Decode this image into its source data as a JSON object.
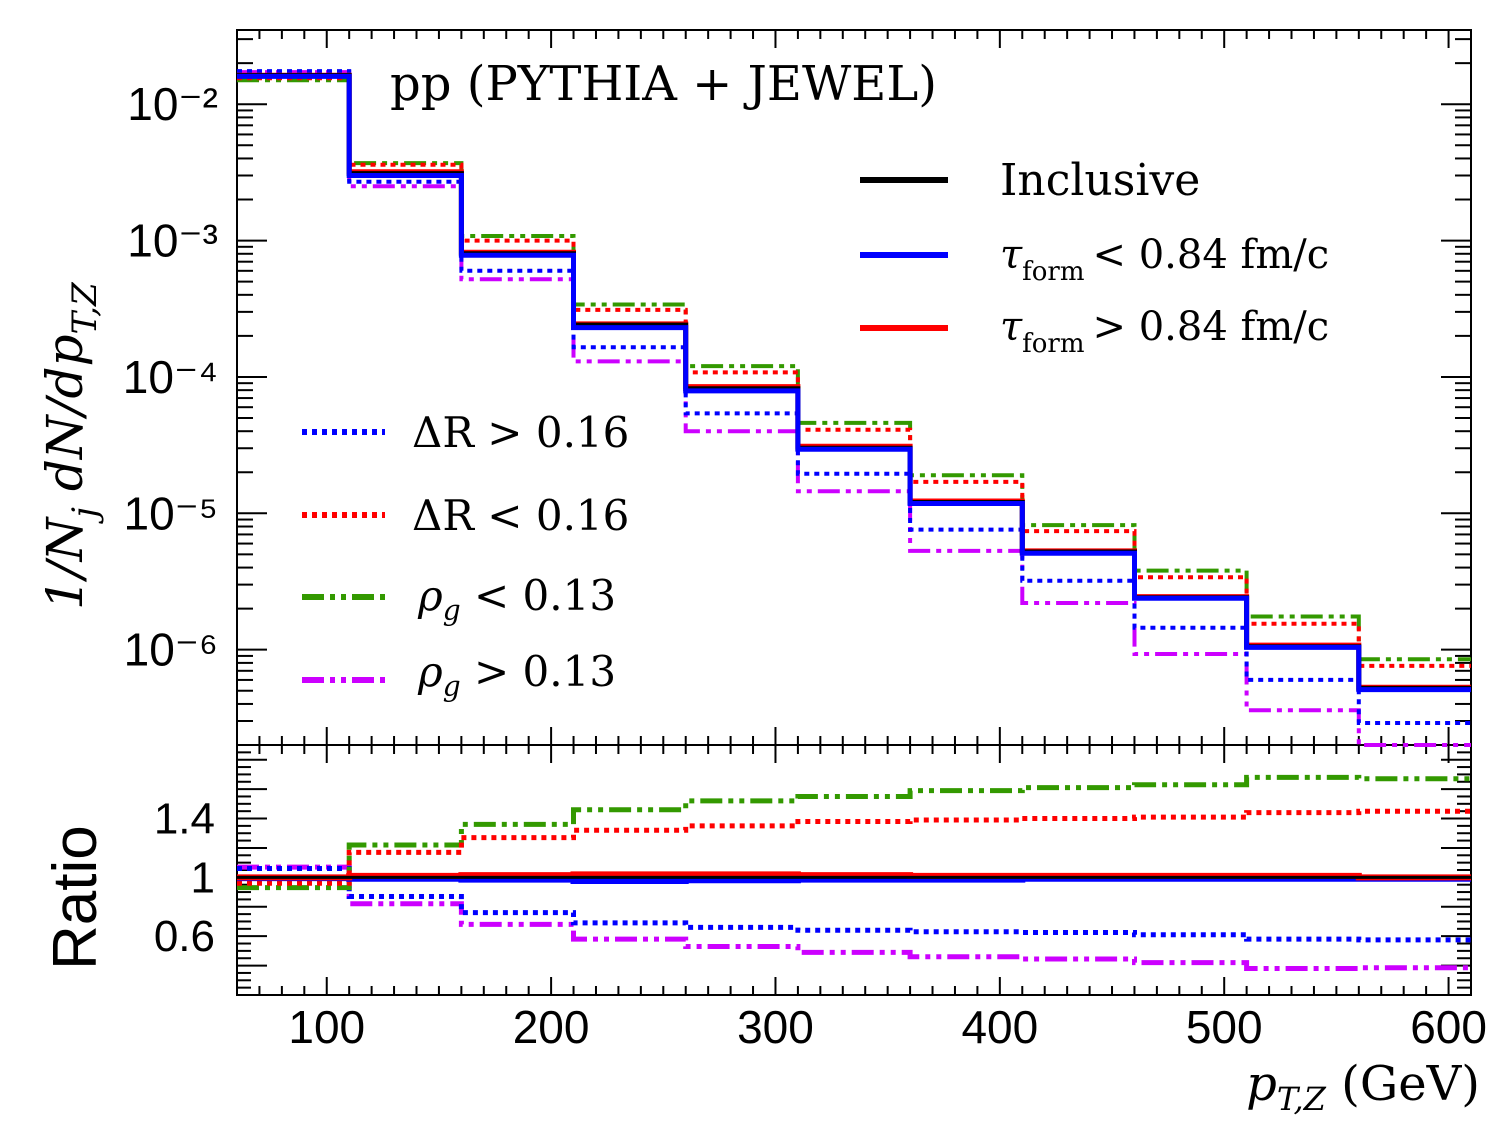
{
  "chart_data": {
    "type": "line",
    "title": "pp (PYTHIA + JEWEL)",
    "xlabel": "p_{T,Z} (GeV)",
    "x_bin_edges": [
      60,
      110,
      160,
      210,
      260,
      310,
      360,
      410,
      460,
      510,
      560,
      610
    ],
    "x_ticks": [
      "100",
      "200",
      "300",
      "400",
      "500",
      "600"
    ],
    "xlim": [
      60,
      610
    ],
    "top_panel": {
      "ylabel": "1/N_j dN/dp_{T,Z}",
      "yscale": "log",
      "ylim": [
        2e-07,
        0.035
      ],
      "y_ticks": [
        "10⁻²",
        "10⁻³",
        "10⁻⁴",
        "10⁻⁵",
        "10⁻⁶"
      ],
      "series": [
        {
          "name": "Inclusive",
          "style": "solid",
          "values": [
            0.0162,
            0.0031,
            0.0008,
            0.00024,
            8.2e-05,
            3e-05,
            1.2e-05,
            5.2e-06,
            2.4e-06,
            1.05e-06,
            5.2e-07
          ]
        },
        {
          "name": "τ_form < 0.84 fm/c",
          "style": "solid",
          "values": [
            0.016,
            0.003,
            0.00078,
            0.00023,
            7.9e-05,
            2.95e-05,
            1.18e-05,
            5.1e-06,
            2.38e-06,
            1.04e-06,
            5.1e-07
          ]
        },
        {
          "name": "τ_form > 0.84 fm/c",
          "style": "solid",
          "values": [
            0.0163,
            0.0032,
            0.00082,
            0.000245,
            8.5e-05,
            3.1e-05,
            1.23e-05,
            5.3e-06,
            2.45e-06,
            1.08e-06,
            5.3e-07
          ]
        },
        {
          "name": "ΔR > 0.16",
          "style": "dotted",
          "values": [
            0.0175,
            0.0027,
            0.0006,
            0.000165,
            5.4e-05,
            1.95e-05,
            7.6e-06,
            3.2e-06,
            1.45e-06,
            6e-07,
            2.9e-07
          ]
        },
        {
          "name": "ΔR < 0.16",
          "style": "dotted",
          "values": [
            0.0155,
            0.0036,
            0.001,
            0.00031,
            0.000108,
            4.1e-05,
            1.7e-05,
            7.4e-06,
            3.4e-06,
            1.55e-06,
            7.6e-07
          ]
        },
        {
          "name": "ρ_g < 0.13",
          "style": "dashdot",
          "values": [
            0.015,
            0.0037,
            0.00108,
            0.00034,
            0.00012,
            4.6e-05,
            1.9e-05,
            8.2e-06,
            3.8e-06,
            1.75e-06,
            8.5e-07
          ]
        },
        {
          "name": "ρ_g > 0.13",
          "style": "dashdot",
          "values": [
            0.0172,
            0.0025,
            0.00052,
            0.00013,
            4e-05,
            1.45e-05,
            5.3e-06,
            2.2e-06,
            9.3e-07,
            3.6e-07,
            1.75e-07
          ]
        }
      ]
    },
    "ratio_panel": {
      "ylabel": "Ratio",
      "ylim": [
        0.2,
        1.9
      ],
      "y_ticks": [
        "1.4",
        "1",
        "0.6"
      ],
      "series": [
        {
          "name": "Inclusive",
          "values": [
            1.0,
            1.0,
            1.0,
            1.0,
            1.0,
            1.0,
            1.0,
            1.0,
            1.0,
            1.0,
            1.0
          ]
        },
        {
          "name": "τ_form < 0.84 fm/c",
          "values": [
            0.995,
            0.99,
            0.985,
            0.975,
            0.98,
            0.985,
            0.985,
            0.99,
            0.99,
            0.99,
            0.99
          ]
        },
        {
          "name": "τ_form > 0.84 fm/c",
          "values": [
            1.0,
            1.01,
            1.015,
            1.02,
            1.02,
            1.015,
            1.01,
            1.01,
            1.01,
            1.01,
            1.0
          ]
        },
        {
          "name": "ΔR > 0.16",
          "values": [
            1.06,
            0.87,
            0.76,
            0.69,
            0.66,
            0.64,
            0.63,
            0.625,
            0.61,
            0.58,
            0.575
          ]
        },
        {
          "name": "ΔR < 0.16",
          "values": [
            0.96,
            1.17,
            1.27,
            1.32,
            1.35,
            1.38,
            1.39,
            1.4,
            1.41,
            1.44,
            1.45
          ]
        },
        {
          "name": "ρ_g < 0.13",
          "values": [
            0.93,
            1.22,
            1.36,
            1.46,
            1.52,
            1.55,
            1.59,
            1.61,
            1.63,
            1.68,
            1.67
          ]
        },
        {
          "name": "ρ_g > 0.13",
          "values": [
            1.07,
            0.82,
            0.68,
            0.58,
            0.53,
            0.49,
            0.46,
            0.445,
            0.42,
            0.38,
            0.385
          ]
        }
      ]
    },
    "legend": [
      {
        "label": "Inclusive",
        "color": "#000000",
        "style": "solid"
      },
      {
        "label": "τ_form < 0.84 fm/c",
        "color": "#0000ff",
        "style": "solid"
      },
      {
        "label": "τ_form > 0.84 fm/c",
        "color": "#ff0000",
        "style": "solid"
      },
      {
        "label": "ΔR > 0.16",
        "color": "#0000ff",
        "style": "dotted"
      },
      {
        "label": "ΔR < 0.16",
        "color": "#ff0000",
        "style": "dotted"
      },
      {
        "label": "ρ_g < 0.13",
        "color": "#339900",
        "style": "dashdot"
      },
      {
        "label": "ρ_g > 0.13",
        "color": "#cc00ff",
        "style": "dashdot"
      }
    ]
  },
  "text": {
    "title": "pp (PYTHIA + JEWEL)",
    "legend": {
      "inclusive": "Inclusive",
      "tau_lt": "< 0.84 fm/c",
      "tau_gt": "> 0.84 fm/c",
      "tau_sym": "τ",
      "tau_sub": "form",
      "dr_gt": "ΔR > 0.16",
      "dr_lt": "ΔR < 0.16",
      "rho_sym": "ρ",
      "rho_sub": "g",
      "rho_lt": " < 0.13",
      "rho_gt": " > 0.13"
    },
    "axes": {
      "ylabel_top": "1/N",
      "ylabel_top_sub": "j",
      "ylabel_top_rest": " dN/dp",
      "ylabel_top_sub2": "T,Z",
      "ylabel_ratio": "Ratio",
      "xlabel_main": "p",
      "xlabel_sub": "T,Z",
      "xlabel_unit": " (GeV)"
    }
  },
  "colors": {
    "inclusive": "#000000",
    "blue": "#0000ff",
    "red": "#ff0000",
    "green": "#339900",
    "magenta": "#cc00ff"
  }
}
